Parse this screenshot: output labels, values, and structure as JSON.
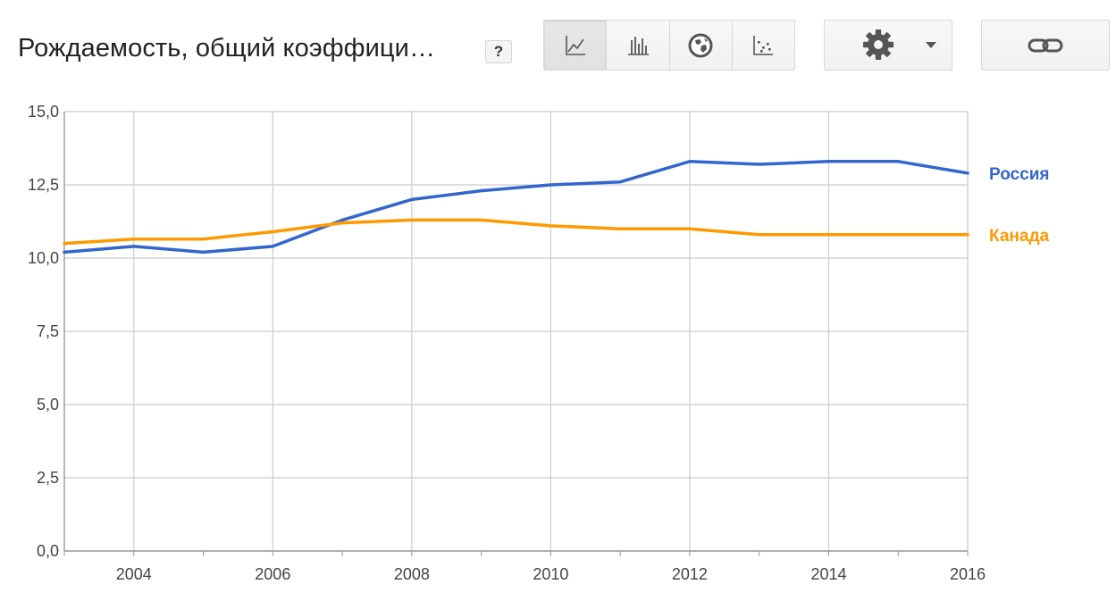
{
  "header": {
    "title": "Рождаемость, общий коэффици…",
    "help_label": "?",
    "buttons": [
      {
        "icon": "line-chart-icon",
        "active": true
      },
      {
        "icon": "bar-chart-icon",
        "active": false
      },
      {
        "icon": "globe-map-icon",
        "active": false
      },
      {
        "icon": "scatter-plot-icon",
        "active": false
      }
    ],
    "settings_icon": "gear-icon",
    "dropdown_icon": "caret-down-icon",
    "link_icon": "link-icon"
  },
  "chart_data": {
    "type": "line",
    "title": "Рождаемость, общий коэффици…",
    "x": [
      2003,
      2004,
      2005,
      2006,
      2007,
      2008,
      2009,
      2010,
      2011,
      2012,
      2013,
      2014,
      2015,
      2016
    ],
    "xlim": [
      2003,
      2016
    ],
    "xticks": [
      "2004",
      "2006",
      "2008",
      "2010",
      "2012",
      "2014",
      "2016"
    ],
    "ylim": [
      0,
      15
    ],
    "yticks": [
      "0,0",
      "2,5",
      "5,0",
      "7,5",
      "10,0",
      "12,5",
      "15,0"
    ],
    "grid": true,
    "legend": "right-inline",
    "series": [
      {
        "name": "Россия",
        "color": "#3366cc",
        "values": [
          10.2,
          10.4,
          10.2,
          10.4,
          11.3,
          12.0,
          12.3,
          12.5,
          12.6,
          13.3,
          13.2,
          13.3,
          13.3,
          12.9
        ]
      },
      {
        "name": "Канада",
        "color": "#ff9900",
        "values": [
          10.5,
          10.65,
          10.65,
          10.9,
          11.2,
          11.3,
          11.3,
          11.1,
          11.0,
          11.0,
          10.8,
          10.8,
          10.8,
          10.8
        ]
      }
    ]
  }
}
